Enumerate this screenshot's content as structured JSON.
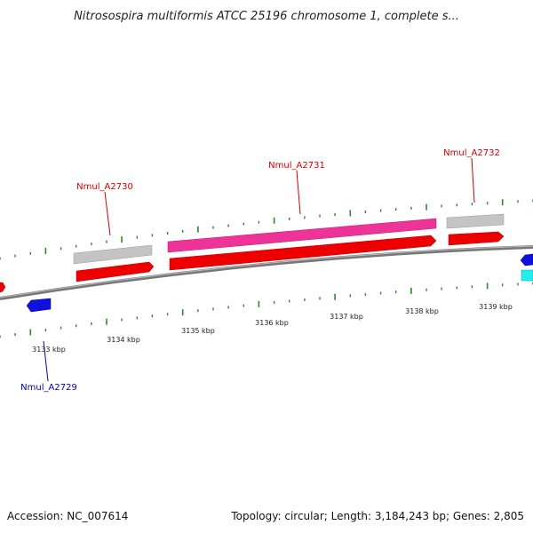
{
  "title": "Nitrosospira multiformis ATCC 25196 chromosome 1, complete s...",
  "footer": {
    "accession": "Accession: NC_007614",
    "summary": "Topology: circular; Length: 3,184,243 bp; Genes: 2,805"
  },
  "scale_ticks": [
    {
      "label": "3133 kbp",
      "kbp": 3133
    },
    {
      "label": "3134 kbp",
      "kbp": 3134
    },
    {
      "label": "3135 kbp",
      "kbp": 3135
    },
    {
      "label": "3136 kbp",
      "kbp": 3136
    },
    {
      "label": "3137 kbp",
      "kbp": 3137
    },
    {
      "label": "3138 kbp",
      "kbp": 3138
    },
    {
      "label": "3139 kbp",
      "kbp": 3139
    }
  ],
  "gene_labels": [
    {
      "name": "Nmul_A2729",
      "strand": "reverse",
      "color": "#0000aa"
    },
    {
      "name": "Nmul_A2730",
      "strand": "forward",
      "color": "#cc0000"
    },
    {
      "name": "Nmul_A2731",
      "strand": "forward",
      "color": "#cc0000"
    },
    {
      "name": "Nmul_A2732",
      "strand": "forward",
      "color": "#cc0000"
    }
  ],
  "colors": {
    "cds_forward": "#ee0000",
    "cds_reverse": "#1111dd",
    "highlight_gene": "#ee3399",
    "gray_gene": "#c0c0c0",
    "cyan_gene": "#22eeee",
    "backbone": "#777777",
    "tick_green": "#2a8a2a"
  }
}
